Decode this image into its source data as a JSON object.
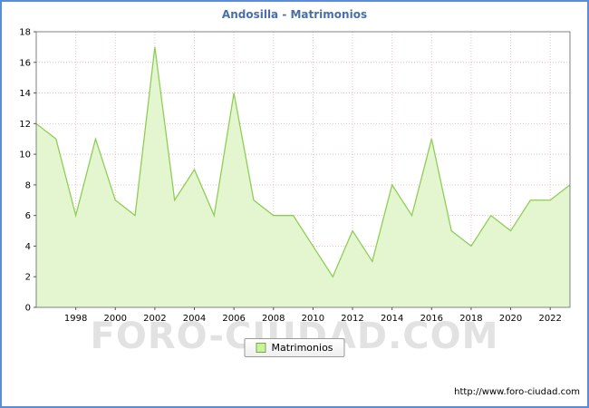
{
  "watermark": "FORO-CIUDAD.COM",
  "footer": {
    "url": "http://www.foro-ciudad.com"
  },
  "colors": {
    "frame_border": "#5b8dd6",
    "title": "#4a6ea9",
    "line": "#8fce55",
    "fill": "#e3f6cf",
    "grid": "#eac0c0",
    "plot_border": "#808080",
    "legend_swatch_fill": "#ccf2a0",
    "legend_swatch_border": "#70ad47"
  },
  "chart_data": {
    "type": "area",
    "title": "Andosilla - Matrimonios",
    "legend": "Matrimonios",
    "x": [
      1996,
      1997,
      1998,
      1999,
      2000,
      2001,
      2002,
      2003,
      2004,
      2005,
      2006,
      2007,
      2008,
      2009,
      2010,
      2011,
      2012,
      2013,
      2014,
      2015,
      2016,
      2017,
      2018,
      2019,
      2020,
      2021,
      2022,
      2023
    ],
    "values": [
      12,
      11,
      6,
      11,
      7,
      6,
      17,
      7,
      9,
      6,
      14,
      7,
      6,
      6,
      4,
      2,
      5,
      3,
      8,
      6,
      11,
      5,
      4,
      6,
      5,
      7,
      7,
      8
    ],
    "xticks": [
      1998,
      2000,
      2002,
      2004,
      2006,
      2008,
      2010,
      2012,
      2014,
      2016,
      2018,
      2020,
      2022
    ],
    "ylim": [
      0,
      18
    ],
    "ytick_step": 2,
    "grid": true,
    "legend_position": "bottom-center"
  }
}
